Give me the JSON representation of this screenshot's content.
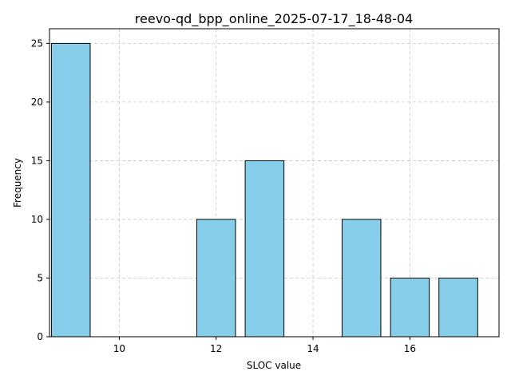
{
  "chart_data": {
    "type": "bar",
    "title": "reevo-qd_bpp_online_2025-07-17_18-48-04",
    "xlabel": "SLOC value",
    "ylabel": "Frequency",
    "x": [
      9,
      12,
      13,
      15,
      16,
      17
    ],
    "values": [
      25,
      10,
      15,
      10,
      5,
      5
    ],
    "bar_width": 0.8,
    "xlim": [
      8.56,
      17.84
    ],
    "ylim": [
      0,
      26.25
    ],
    "xticks": [
      10,
      12,
      14,
      16
    ],
    "yticks": [
      0,
      5,
      10,
      15,
      20,
      25
    ],
    "grid": true,
    "bar_color": "#87ceeb",
    "edge_color": "#000000"
  }
}
